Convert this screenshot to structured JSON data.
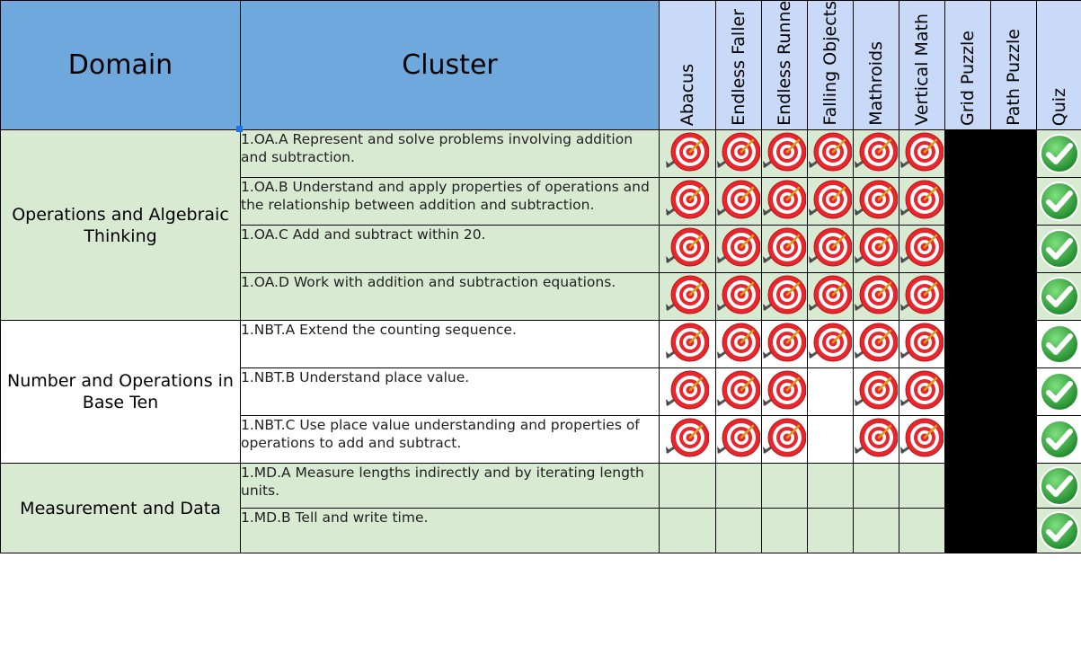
{
  "headers": {
    "domain": "Domain",
    "cluster": "Cluster",
    "games": [
      "Abacus",
      "Endless Faller",
      "Endless Runner",
      "Falling Objects",
      "Mathroids",
      "Vertical Math",
      "Grid Puzzle",
      "Path Puzzle",
      "Quiz"
    ]
  },
  "domains": [
    {
      "name": "Operations and Algebraic Thinking",
      "rows": 4,
      "shade": "green"
    },
    {
      "name": "Number and Operations in Base Ten",
      "rows": 3,
      "shade": "white"
    },
    {
      "name": "Measurement and Data",
      "rows": 2,
      "shade": "green"
    }
  ],
  "rows": [
    {
      "cluster": "1.OA.A Represent and solve problems involving addition and subtraction.",
      "targets": [
        1,
        1,
        1,
        1,
        1,
        1
      ],
      "quiz": true
    },
    {
      "cluster": "1.OA.B  Understand and apply properties of operations and the relationship between addition and subtraction.",
      "targets": [
        1,
        1,
        1,
        1,
        1,
        1
      ],
      "quiz": true
    },
    {
      "cluster": "1.OA.C  Add and subtract within 20.",
      "targets": [
        1,
        1,
        1,
        1,
        1,
        1
      ],
      "quiz": true
    },
    {
      "cluster": "1.OA.D  Work with addition and subtraction equations.",
      "targets": [
        1,
        1,
        1,
        1,
        1,
        1
      ],
      "quiz": true
    },
    {
      "cluster": "1.NBT.A Extend the counting sequence.",
      "targets": [
        1,
        1,
        1,
        1,
        1,
        1
      ],
      "quiz": true
    },
    {
      "cluster": "1.NBT.B  Understand place value.",
      "targets": [
        1,
        1,
        1,
        0,
        1,
        1
      ],
      "quiz": true
    },
    {
      "cluster": "1.NBT.C  Use place value understanding and properties of operations to add and subtract.",
      "targets": [
        1,
        1,
        1,
        0,
        1,
        1
      ],
      "quiz": true
    },
    {
      "cluster": "1.MD.A  Measure lengths indirectly and by iterating length units.",
      "targets": [
        0,
        0,
        0,
        0,
        0,
        0
      ],
      "quiz": true
    },
    {
      "cluster": "1.MD.B  Tell and write time.",
      "targets": [
        0,
        0,
        0,
        0,
        0,
        0
      ],
      "quiz": true
    }
  ],
  "icons": {
    "target": "dart-target-icon",
    "quiz": "green-check-icon"
  },
  "colors": {
    "header_blue": "#6fa8dc",
    "header_light": "#c9daf8",
    "green": "#d9ead3",
    "blocked": "#000000",
    "check": "#2e9e3a",
    "target_red": "#e8262c"
  }
}
